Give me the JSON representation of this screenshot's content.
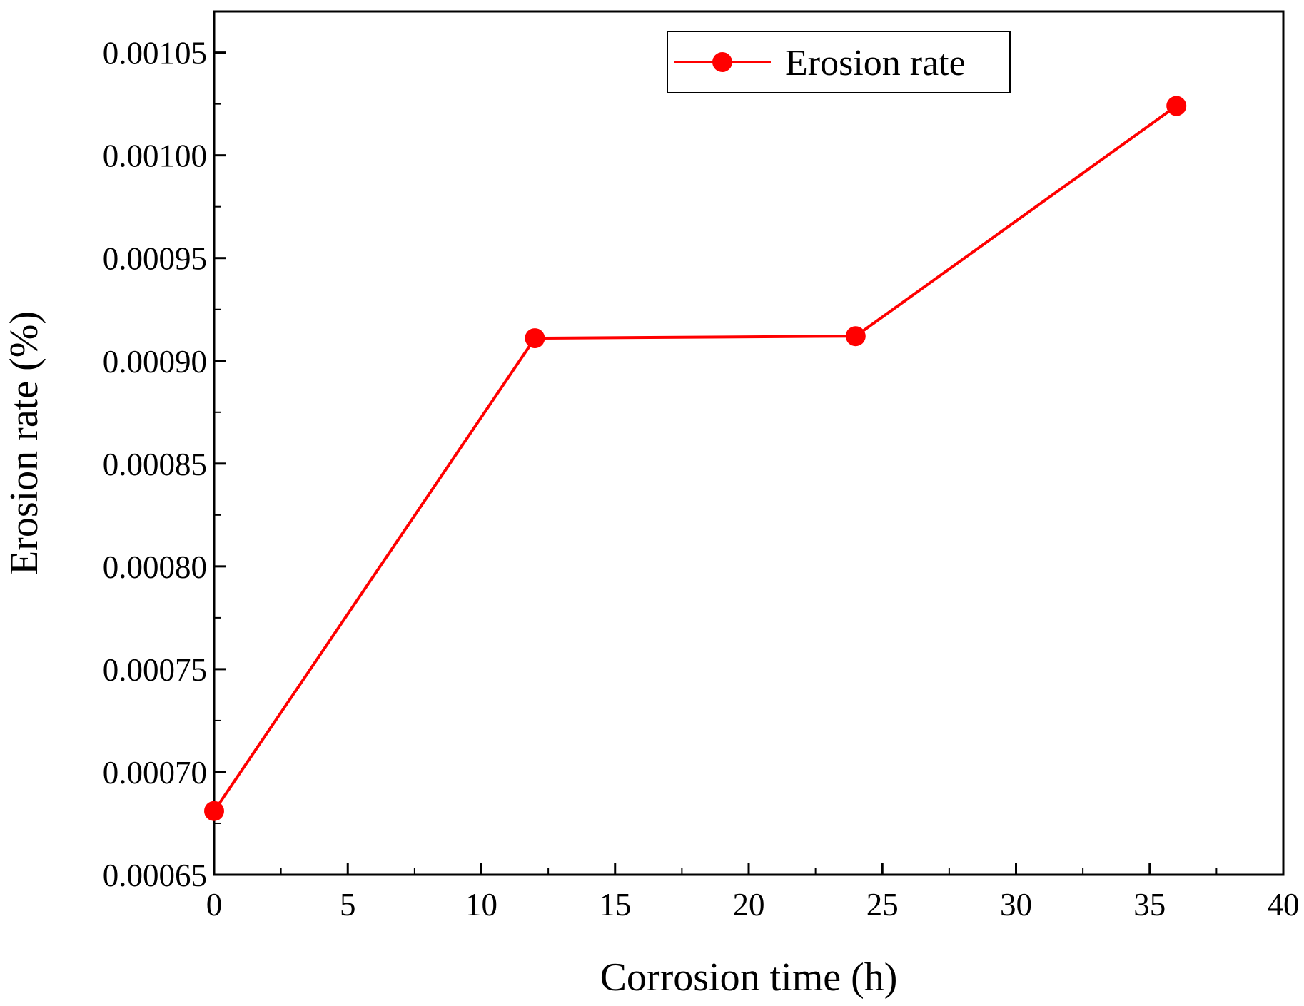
{
  "chart_data": {
    "type": "line",
    "title": "",
    "xlabel": "Corrosion time (h)",
    "ylabel": "Erosion rate (%)",
    "xlim": [
      0,
      40
    ],
    "ylim": [
      0.00065,
      0.00107
    ],
    "xticks": [
      0,
      5,
      10,
      15,
      20,
      25,
      30,
      35,
      40
    ],
    "xtick_labels": [
      "0",
      "5",
      "10",
      "15",
      "20",
      "25",
      "30",
      "35",
      "40"
    ],
    "yticks": [
      0.00065,
      0.0007,
      0.00075,
      0.0008,
      0.00085,
      0.0009,
      0.00095,
      0.001,
      0.00105
    ],
    "ytick_labels": [
      "0.00065",
      "0.00070",
      "0.00075",
      "0.00080",
      "0.00085",
      "0.00090",
      "0.00095",
      "0.00100",
      "0.00105"
    ],
    "grid": false,
    "legend_position": "top-center",
    "series": [
      {
        "name": "Erosion rate",
        "color": "#ff0000",
        "marker": "circle",
        "x": [
          0,
          12,
          24,
          36
        ],
        "y": [
          0.000681,
          0.000911,
          0.000912,
          0.001024
        ]
      }
    ]
  }
}
